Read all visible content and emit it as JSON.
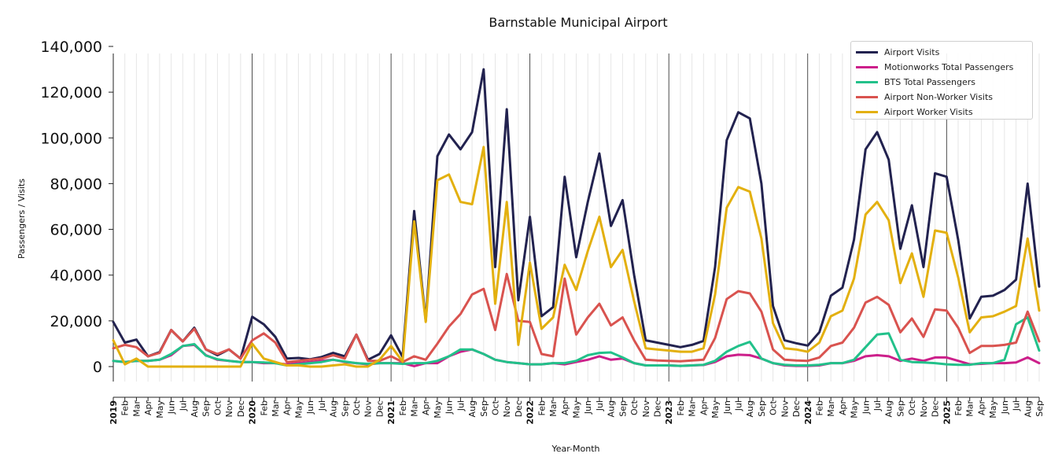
{
  "chart_data": {
    "type": "line",
    "title": "Barnstable Municipal Airport",
    "xlabel": "Year-Month",
    "ylabel": "Passengers / Visits",
    "ylim": [
      -6000,
      140000
    ],
    "yticks": [
      0,
      20000,
      40000,
      60000,
      80000,
      100000,
      120000,
      140000
    ],
    "ytick_labels": [
      "0",
      "20,000",
      "40,000",
      "60,000",
      "80,000",
      "100,000",
      "120,000",
      "140,000"
    ],
    "grid": "vertical monthly lines; darker lines at January of each year",
    "legend_position": "top-right",
    "x": [
      "2019-01",
      "2019-02",
      "2019-03",
      "2019-04",
      "2019-05",
      "2019-06",
      "2019-07",
      "2019-08",
      "2019-09",
      "2019-10",
      "2019-11",
      "2019-12",
      "2020-01",
      "2020-02",
      "2020-03",
      "2020-04",
      "2020-05",
      "2020-06",
      "2020-07",
      "2020-08",
      "2020-09",
      "2020-10",
      "2020-11",
      "2020-12",
      "2021-01",
      "2021-02",
      "2021-03",
      "2021-04",
      "2021-05",
      "2021-06",
      "2021-07",
      "2021-08",
      "2021-09",
      "2021-10",
      "2021-11",
      "2021-12",
      "2022-01",
      "2022-02",
      "2022-03",
      "2022-04",
      "2022-05",
      "2022-06",
      "2022-07",
      "2022-08",
      "2022-09",
      "2022-10",
      "2022-11",
      "2022-12",
      "2023-01",
      "2023-02",
      "2023-03",
      "2023-04",
      "2023-05",
      "2023-06",
      "2023-07",
      "2023-08",
      "2023-09",
      "2023-10",
      "2023-11",
      "2023-12",
      "2024-01",
      "2024-02",
      "2024-03",
      "2024-04",
      "2024-05",
      "2024-06",
      "2024-07",
      "2024-08",
      "2024-09",
      "2024-10",
      "2024-11",
      "2024-12",
      "2025-01",
      "2025-02",
      "2025-03",
      "2025-04",
      "2025-05",
      "2025-06",
      "2025-07",
      "2025-08",
      "2025-09"
    ],
    "x_tick_labels": [
      "2019",
      "Feb",
      "Mar",
      "Apr",
      "May",
      "Jun",
      "Jul",
      "Aug",
      "Sep",
      "Oct",
      "Nov",
      "Dec",
      "2020",
      "Feb",
      "Mar",
      "Apr",
      "May",
      "Jun",
      "Jul",
      "Aug",
      "Sep",
      "Oct",
      "Nov",
      "Dec",
      "2021",
      "Feb",
      "Mar",
      "Apr",
      "May",
      "Jun",
      "Jul",
      "Aug",
      "Sep",
      "Oct",
      "Nov",
      "Dec",
      "2022",
      "Feb",
      "Mar",
      "Apr",
      "May",
      "Jun",
      "Jul",
      "Aug",
      "Sep",
      "Oct",
      "Nov",
      "Dec",
      "2023",
      "Feb",
      "Mar",
      "Apr",
      "May",
      "Jun",
      "Jul",
      "Aug",
      "Sep",
      "Oct",
      "Nov",
      "Dec",
      "2024",
      "Feb",
      "Mar",
      "Apr",
      "May",
      "Jun",
      "Jul",
      "Aug",
      "Sep",
      "Oct",
      "Nov",
      "Dec",
      "2025",
      "Feb",
      "Mar",
      "Apr",
      "May",
      "Jun",
      "Jul",
      "Aug",
      "Sep"
    ],
    "series": [
      {
        "name": "Airport Visits",
        "color": "#22224f",
        "values": [
          19500,
          10500,
          11800,
          4500,
          6300,
          16000,
          11000,
          17000,
          7500,
          5000,
          7500,
          3500,
          21800,
          18500,
          13000,
          3500,
          3800,
          3200,
          4200,
          6000,
          4500,
          14000,
          3000,
          5500,
          13700,
          4200,
          68000,
          20000,
          92000,
          101500,
          95000,
          102500,
          130000,
          43500,
          112500,
          29000,
          65500,
          22000,
          26000,
          83000,
          47800,
          72000,
          93200,
          61500,
          72800,
          40000,
          11500,
          10500,
          9500,
          8500,
          9500,
          11200,
          43500,
          99000,
          111200,
          108500,
          80000,
          26500,
          11500,
          10200,
          9200,
          15000,
          31000,
          34500,
          55500,
          95000,
          102500,
          90500,
          51500,
          70500,
          43500,
          84500,
          83000,
          55500,
          21000,
          30500,
          31000,
          33500,
          38000,
          80000,
          35000
        ]
      },
      {
        "name": "Motionworks Total Passengers",
        "color": "#cc1f8a",
        "values": [
          2500,
          2000,
          2500,
          2500,
          3000,
          5000,
          9000,
          9500,
          5000,
          3000,
          2500,
          2000,
          2000,
          1500,
          1500,
          1000,
          1500,
          2000,
          2500,
          3000,
          2000,
          1500,
          1000,
          1500,
          1500,
          1500,
          200,
          1500,
          1500,
          4500,
          6500,
          7500,
          5500,
          3000,
          2000,
          1500,
          1000,
          1000,
          1500,
          1000,
          2000,
          3000,
          4500,
          3000,
          3500,
          1500,
          500,
          500,
          500,
          300,
          500,
          700,
          2000,
          4500,
          5200,
          5000,
          3500,
          1500,
          500,
          300,
          300,
          500,
          1500,
          1500,
          2500,
          4500,
          5000,
          4500,
          2500,
          3500,
          2500,
          4000,
          4000,
          2500,
          1000,
          1200,
          1500,
          1500,
          1800,
          4000,
          1500
        ]
      },
      {
        "name": "BTS Total Passengers",
        "color": "#22c18a",
        "values": [
          2500,
          2000,
          2500,
          2500,
          3000,
          5500,
          9000,
          9800,
          4800,
          3200,
          2500,
          2000,
          2000,
          1800,
          1500,
          500,
          1000,
          1500,
          2000,
          3000,
          2200,
          1500,
          1200,
          1500,
          1500,
          1200,
          1500,
          1500,
          2500,
          4500,
          7500,
          7500,
          5500,
          3000,
          2000,
          1500,
          1000,
          1000,
          1500,
          1500,
          2500,
          5000,
          6000,
          6200,
          4000,
          1500,
          500,
          500,
          500,
          300,
          500,
          800,
          2500,
          6500,
          9000,
          10800,
          3500,
          1500,
          800,
          500,
          500,
          800,
          1500,
          1500,
          3000,
          8500,
          14000,
          14500,
          3000,
          2000,
          1800,
          1500,
          1000,
          800,
          800,
          1500,
          1500,
          3000,
          18500,
          21500,
          7000
        ]
      },
      {
        "name": "Airport Non-Worker Visits",
        "color": "#d9534f",
        "values": [
          8000,
          9500,
          8500,
          4500,
          6000,
          16000,
          11000,
          16500,
          7500,
          5500,
          7500,
          3500,
          11500,
          14500,
          10500,
          2000,
          2500,
          3000,
          3500,
          5000,
          3500,
          14000,
          2500,
          2500,
          4500,
          2000,
          4500,
          3000,
          10000,
          17500,
          23000,
          31500,
          34000,
          16000,
          40500,
          20000,
          19500,
          5500,
          4500,
          38500,
          14000,
          21500,
          27500,
          18000,
          21500,
          11500,
          3000,
          2700,
          2500,
          2300,
          2700,
          3000,
          12500,
          29500,
          33000,
          32000,
          24000,
          7500,
          3000,
          2700,
          2500,
          4000,
          9000,
          10500,
          17000,
          28000,
          30500,
          27000,
          15000,
          21000,
          13000,
          25000,
          24500,
          17000,
          6000,
          9000,
          9000,
          9500,
          10500,
          24000,
          11000
        ]
      },
      {
        "name": "Airport Worker Visits",
        "color": "#e3b00f",
        "values": [
          11500,
          1000,
          3500,
          0,
          0,
          0,
          0,
          0,
          0,
          0,
          0,
          0,
          10000,
          3500,
          2000,
          500,
          500,
          0,
          0,
          500,
          1000,
          0,
          0,
          3000,
          9000,
          2200,
          63500,
          19500,
          81500,
          84000,
          72000,
          71000,
          96000,
          27500,
          72000,
          9500,
          45500,
          16500,
          21500,
          44500,
          33500,
          50500,
          65500,
          43500,
          51000,
          28500,
          8000,
          7500,
          7000,
          6500,
          6500,
          8000,
          31500,
          69500,
          78500,
          76500,
          56000,
          19000,
          8000,
          7500,
          6500,
          10500,
          22000,
          24500,
          38500,
          66500,
          72000,
          64000,
          36500,
          49500,
          30500,
          59500,
          58500,
          39000,
          15000,
          21500,
          22000,
          24000,
          26500,
          56000,
          24500
        ]
      }
    ]
  }
}
